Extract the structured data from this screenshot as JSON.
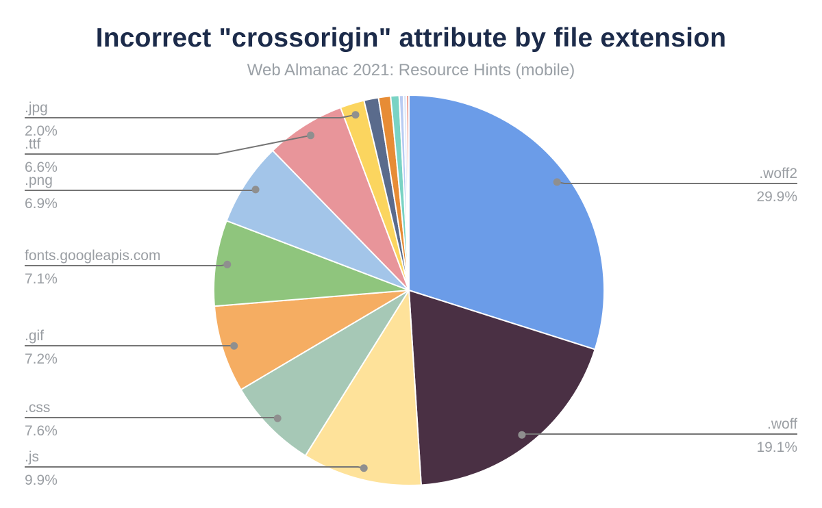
{
  "header": {
    "title": "Incorrect \"crossorigin\" attribute by file extension",
    "subtitle": "Web Almanac 2021: Resource Hints (mobile)"
  },
  "chart_data": {
    "type": "pie",
    "title": "Incorrect \"crossorigin\" attribute by file extension",
    "subtitle": "Web Almanac 2021: Resource Hints (mobile)",
    "unit": "percent",
    "direction": "clockwise",
    "start_angle_deg": 0,
    "legend": "none",
    "labeling": "external labels with gray leader lines and dots",
    "slices": [
      {
        "label": ".woff2",
        "value": 29.9,
        "pct_label": "29.9%",
        "color": "#6b9ce8",
        "label_side": "right"
      },
      {
        "label": ".woff",
        "value": 19.1,
        "pct_label": "19.1%",
        "color": "#4a3044",
        "label_side": "right"
      },
      {
        "label": ".js",
        "value": 9.9,
        "pct_label": "9.9%",
        "color": "#fee29a",
        "label_side": "left"
      },
      {
        "label": ".css",
        "value": 7.6,
        "pct_label": "7.6%",
        "color": "#a6c8b6",
        "label_side": "left"
      },
      {
        "label": ".gif",
        "value": 7.2,
        "pct_label": "7.2%",
        "color": "#f5ad62",
        "label_side": "left"
      },
      {
        "label": "fonts.googleapis.com",
        "value": 7.1,
        "pct_label": "7.1%",
        "color": "#8fc57d",
        "label_side": "left"
      },
      {
        "label": ".png",
        "value": 6.9,
        "pct_label": "6.9%",
        "color": "#a3c5e9",
        "label_side": "left"
      },
      {
        "label": ".ttf",
        "value": 6.6,
        "pct_label": "6.6%",
        "color": "#e8959a",
        "label_side": "left"
      },
      {
        "label": ".jpg",
        "value": 2.0,
        "pct_label": "2.0%",
        "color": "#fbd55f",
        "label_side": "left"
      },
      {
        "label": "",
        "value": 1.2,
        "color": "#5a6b8c"
      },
      {
        "label": "",
        "value": 1.0,
        "color": "#e78c35"
      },
      {
        "label": "",
        "value": 0.7,
        "color": "#79d3c4"
      },
      {
        "label": "",
        "value": 0.35,
        "color": "#b9cbf2"
      },
      {
        "label": "",
        "value": 0.25,
        "color": "#dde7f8"
      },
      {
        "label": "",
        "value": 0.2,
        "color": "#e87e6d"
      }
    ]
  },
  "style": {
    "title_color": "#1c2b4a",
    "subtitle_color": "#9aa0a6",
    "label_color": "#9a9ea3",
    "leader_line_color": "#757575",
    "leader_dot_color": "#8f8f8f",
    "slice_border_color": "#ffffff",
    "background": "#ffffff"
  }
}
